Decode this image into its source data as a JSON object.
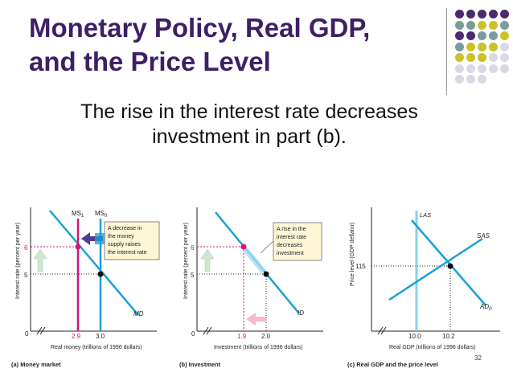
{
  "slide": {
    "title_line1": "Monetary Policy, Real GDP,",
    "title_line2": "and the Price Level",
    "subtitle_line1": "The rise in the interest rate decreases",
    "subtitle_line2": "investment in part (b).",
    "page_number": "32"
  },
  "colors": {
    "purple": "#4b2a6e",
    "teal": "#7a9c9c",
    "olive": "#c9c22a",
    "light": "#d9d9e6",
    "cyan": "#1aa0d8",
    "magenta": "#d4147a"
  },
  "panel_a": {
    "caption": "(a) Money market",
    "ylabel": "Interest rate (percent per year)",
    "xlabel": "Real money (trillions of 1996 dollars)",
    "origin": "0",
    "y_ticks": [
      "6",
      "5"
    ],
    "x_ticks": [
      "2.9",
      "3.0"
    ],
    "curve_labels": {
      "ms1": "MS",
      "ms1_sub": "1",
      "ms0": "MS",
      "ms0_sub": "0",
      "md": "MD"
    },
    "note": [
      "A decrease in",
      "the money",
      "supply raises",
      "the interest rate"
    ]
  },
  "panel_b": {
    "caption": "(b) Investment",
    "ylabel": "Interest rate (percent per year)",
    "xlabel": "Investment (trillions of 1996 dollars)",
    "origin": "0",
    "y_ticks": [
      "6",
      "5"
    ],
    "x_ticks": [
      "1.9",
      "2.0"
    ],
    "curve_labels": {
      "id": "ID"
    },
    "note": [
      "A rise in the",
      "interest rate",
      "decreases",
      "investment"
    ]
  },
  "panel_c": {
    "caption": "(c) Real GDP and the price level",
    "ylabel": "Price level (GDP deflator)",
    "xlabel": "Real GDP (trillions of 1996 dollars)",
    "y_ticks": [
      "115"
    ],
    "x_ticks": [
      "10.0",
      "10.2"
    ],
    "curve_labels": {
      "las": "LAS",
      "sas": "SAS",
      "ad": "AD",
      "ad_sub": "0"
    }
  }
}
